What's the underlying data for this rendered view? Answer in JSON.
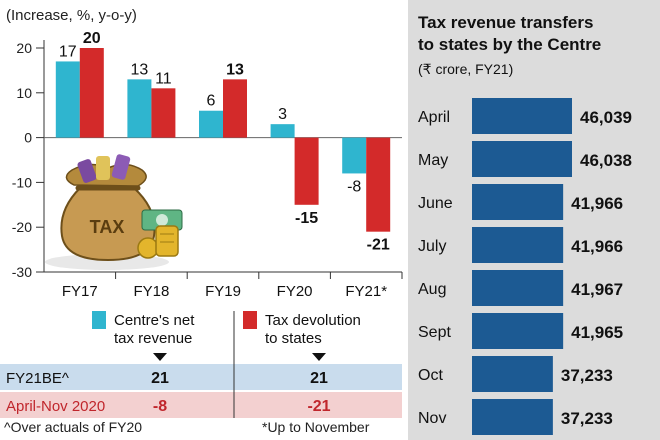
{
  "left_chart": {
    "unit_label": "(Increase, %, y-o-y)",
    "y_ticks": [
      20,
      10,
      0,
      -10,
      -20,
      -30
    ],
    "legend": {
      "net": {
        "label_line1": "Centre's net",
        "label_line2": "tax revenue",
        "color": "#2fb5cf"
      },
      "devolution": {
        "label_line1": "Tax devolution",
        "label_line2": "to states",
        "color": "#d32a2a"
      }
    },
    "footnote_left": "^Over actuals of FY20",
    "footnote_right": "*Up to November",
    "summary_rows": [
      {
        "label": "FY21BE^",
        "net": "21",
        "devolution": "21",
        "bg": "#c9dced",
        "text_color": "#111111"
      },
      {
        "label": "April-Nov 2020",
        "net": "-8",
        "devolution": "-21",
        "bg": "#f3d0d0",
        "text_color": "#c0262c"
      }
    ],
    "illustration": {
      "icon": "money-bag-icon",
      "text": "TAX"
    }
  },
  "chart_data": [
    {
      "type": "bar",
      "title": "",
      "ylabel": "(Increase, %, y-o-y)",
      "ylim": [
        -30,
        20
      ],
      "categories": [
        "FY17",
        "FY18",
        "FY19",
        "FY20",
        "FY21*"
      ],
      "series": [
        {
          "name": "Centre's net tax revenue",
          "color": "#2fb5cf",
          "values": [
            17,
            13,
            6,
            3,
            -8
          ]
        },
        {
          "name": "Tax devolution to states",
          "color": "#d32a2a",
          "values": [
            20,
            11,
            13,
            -15,
            -21
          ]
        }
      ],
      "bold_labels": [
        false,
        false,
        false,
        false,
        false,
        true,
        false,
        true,
        true,
        true
      ]
    },
    {
      "type": "bar",
      "orientation": "horizontal",
      "title": "Tax revenue transfers to states by the Centre",
      "title_line1": "Tax revenue transfers",
      "title_line2": "to states by the Centre",
      "subtitle": "(₹ crore, FY21)",
      "categories": [
        "April",
        "May",
        "June",
        "July",
        "Aug",
        "Sept",
        "Oct",
        "Nov"
      ],
      "values": [
        46039,
        46038,
        41966,
        41966,
        41967,
        41965,
        37233,
        37233
      ],
      "value_labels": [
        "46,039",
        "46,038",
        "41,966",
        "41,966",
        "41,967",
        "41,965",
        "37,233",
        "37,233"
      ],
      "color": "#1c5a93",
      "panel_color": "#dcdcdc"
    }
  ]
}
